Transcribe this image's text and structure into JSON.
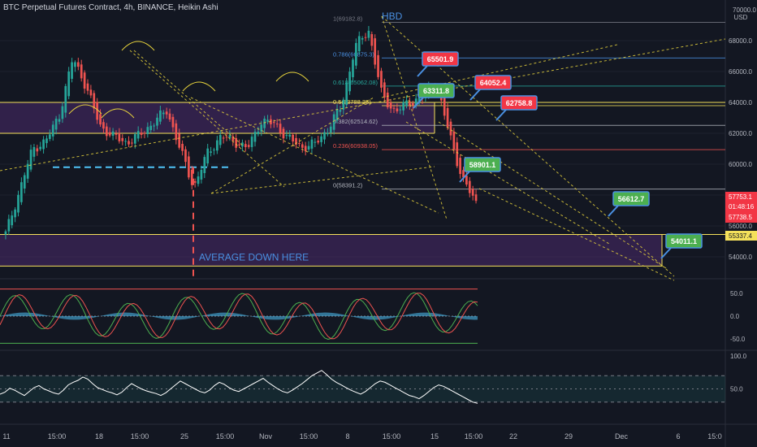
{
  "header": {
    "title": "BTC Perpetual Futures Contract, 4h, BINANCE, Heikin Ashi",
    "currency_line1": "70000.0",
    "currency_line2": "USD"
  },
  "colors": {
    "background": "#131722",
    "bull": "#26a69a",
    "bear": "#ef5350",
    "zone": "#4a2a6b",
    "zone_border": "#f5e15b",
    "trend_lines": "#e6d23c",
    "cyan_level": "#4fc3f7",
    "text_blue": "#4a90e2"
  },
  "chart_data": [
    {
      "type": "candlestick",
      "title": "BTC Perpetual Futures Contract, 4h, BINANCE, Heikin Ashi",
      "y_axis_ticks": [
        54000.0,
        56000.0,
        58000.0,
        60000.0,
        62000.0,
        64000.0,
        66000.0,
        68000.0
      ],
      "ylim": [
        53000,
        70000
      ],
      "x_axis_ticks": [
        "11",
        "15:00",
        "18",
        "15:00",
        "25",
        "15:00",
        "Nov",
        "15:00",
        "8",
        "15:00",
        "15",
        "15:00",
        "22",
        "29",
        "Dec",
        "6",
        "15:0"
      ],
      "price_series": {
        "description": "BTC 4h Heikin Ashi approximate closes",
        "points": [
          [
            "11",
            55500
          ],
          [
            "13",
            58200
          ],
          [
            "15",
            61000
          ],
          [
            "17",
            61500
          ],
          [
            "18",
            63200
          ],
          [
            "19",
            66900
          ],
          [
            "20",
            65000
          ],
          [
            "21",
            62500
          ],
          [
            "22",
            61800
          ],
          [
            "23",
            61400
          ],
          [
            "24",
            61900
          ],
          [
            "25",
            62700
          ],
          [
            "26",
            63500
          ],
          [
            "27",
            60900
          ],
          [
            "28",
            58500
          ],
          [
            "29",
            60700
          ],
          [
            "30",
            61800
          ],
          [
            "31",
            61500
          ],
          [
            "Nov",
            61000
          ],
          [
            "2",
            62800
          ],
          [
            "3",
            62600
          ],
          [
            "4",
            61700
          ],
          [
            "5",
            61100
          ],
          [
            "6",
            61300
          ],
          [
            "7",
            62300
          ],
          [
            "8",
            63800
          ],
          [
            "9",
            67600
          ],
          [
            "10",
            68700
          ],
          [
            "11",
            64400
          ],
          [
            "12",
            63400
          ],
          [
            "13",
            64000
          ],
          [
            "14",
            64300
          ],
          [
            "15",
            65300
          ],
          [
            "16",
            62000
          ],
          [
            "17",
            59000
          ],
          [
            "18",
            57500
          ]
        ]
      },
      "fib_levels": [
        {
          "label": "1(69182.8)",
          "value": 69182.8
        },
        {
          "label": "0.786(66875.3)",
          "value": 66875.3
        },
        {
          "label": "0.618(65062.08)",
          "value": 65062.08
        },
        {
          "label": "0.5(63788.35)",
          "value": 63788.35
        },
        {
          "label": "0.382(62514.62)",
          "value": 62514.62
        },
        {
          "label": "0.236(60938.05)",
          "value": 60938.05
        },
        {
          "label": "0(58391.2)",
          "value": 58391.2
        }
      ],
      "price_labels": [
        {
          "text": "65501.9",
          "value": 65501.9,
          "kind": "bear"
        },
        {
          "text": "64052.4",
          "value": 64052.4,
          "kind": "bear"
        },
        {
          "text": "62758.8",
          "value": 62758.8,
          "kind": "bear"
        },
        {
          "text": "63311.8",
          "value": 63311.8,
          "kind": "bull"
        },
        {
          "text": "58901.1",
          "value": 58901.1,
          "kind": "bull"
        },
        {
          "text": "56612.7",
          "value": 56612.7,
          "kind": "bull"
        },
        {
          "text": "54011.1",
          "value": 54011.1,
          "kind": "bull"
        }
      ],
      "axis_markers": [
        {
          "text": "57753.1",
          "kind": "bear"
        },
        {
          "text": "01:48:16",
          "kind": "bear"
        },
        {
          "text": "57738.5",
          "kind": "bear"
        },
        {
          "text": "55337.4",
          "kind": "zone"
        }
      ],
      "zones": [
        {
          "from": 62000,
          "to": 64000,
          "label": ""
        },
        {
          "from": 53400,
          "to": 55450,
          "label": "AVERAGE DOWN HERE"
        }
      ],
      "annotations": [
        "HBD",
        "AVERAGE DOWN HERE"
      ],
      "dashed_level": 59800
    },
    {
      "type": "line",
      "title": "",
      "y_axis_ticks": [
        50.0,
        0.0,
        -50.0
      ],
      "ylim": [
        -70,
        70
      ],
      "bounds": [
        60,
        -60
      ]
    },
    {
      "type": "line",
      "title": "",
      "y_axis_ticks": [
        100.0,
        50.0
      ],
      "ylim": [
        0,
        100
      ],
      "bounds": [
        70,
        30
      ],
      "values": [
        42,
        45,
        51,
        48,
        44,
        40,
        46,
        52,
        55,
        50,
        47,
        44,
        42,
        48,
        56,
        60,
        63,
        68,
        65,
        58,
        52,
        49,
        46,
        44,
        41,
        45,
        52,
        58,
        54,
        50,
        47,
        45,
        43,
        40,
        44,
        50,
        56,
        62,
        58,
        54,
        50,
        46,
        44,
        48,
        55,
        60,
        57,
        52,
        48,
        46,
        50,
        54,
        58,
        62,
        66,
        60,
        55,
        50,
        46,
        44,
        48,
        53,
        58,
        64,
        70,
        74,
        78,
        72,
        65,
        60,
        56,
        52,
        48,
        45,
        42,
        46,
        52,
        58,
        62,
        60,
        56,
        52,
        48,
        44,
        40,
        38,
        35,
        40,
        46,
        52,
        56,
        54,
        50,
        46,
        42,
        38,
        34,
        30,
        28
      ]
    }
  ]
}
